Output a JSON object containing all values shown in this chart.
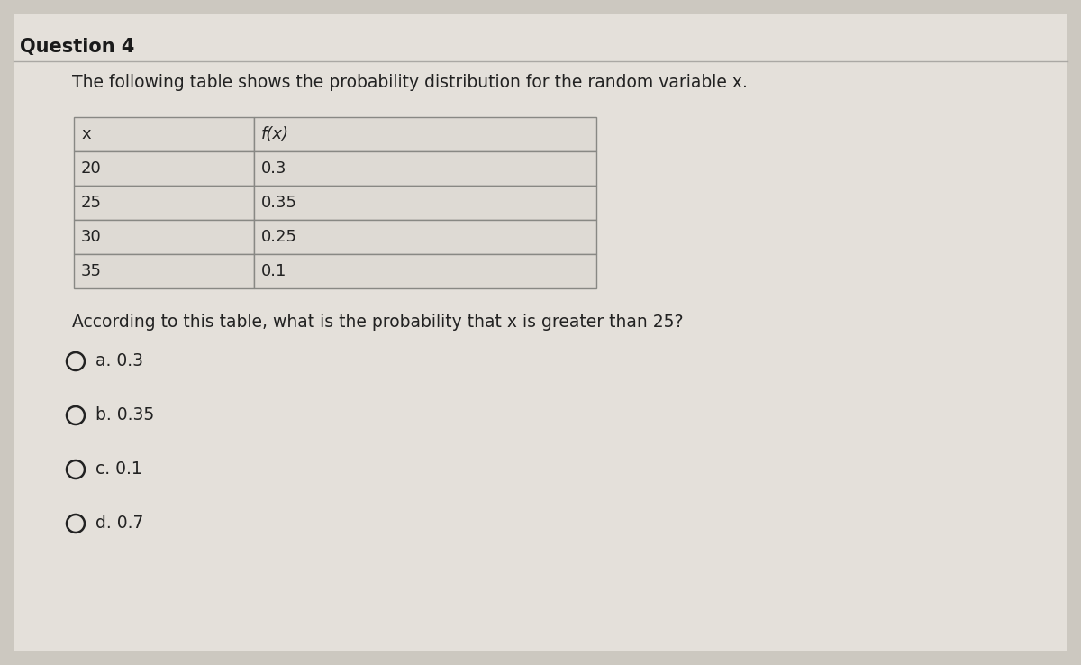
{
  "question_number": "Question 4",
  "description": "The following table shows the probability distribution for the random variable x.",
  "table_headers": [
    "x",
    "f(x)"
  ],
  "table_data": [
    [
      "20",
      "0.3"
    ],
    [
      "25",
      "0.35"
    ],
    [
      "30",
      "0.25"
    ],
    [
      "35",
      "0.1"
    ]
  ],
  "question_text": "According to this table, what is the probability that x is greater than 25?",
  "choices": [
    "a. 0.3",
    "b. 0.35",
    "c. 0.1",
    "d. 0.7"
  ],
  "bg_color": "#ccc8c0",
  "panel_color": "#e4e0da",
  "table_bg": "#dedad4",
  "table_border": "#888884",
  "title_color": "#1a1a1a",
  "text_color": "#222222",
  "sep_line_color": "#aaa8a4"
}
